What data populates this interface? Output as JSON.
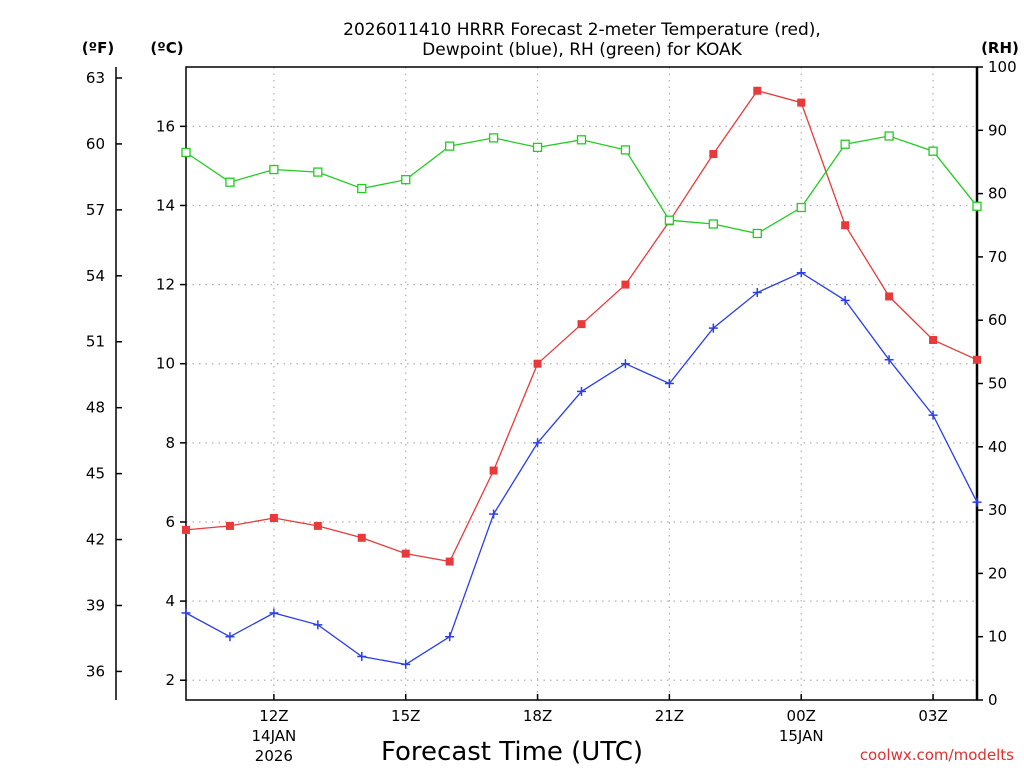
{
  "chart_data": {
    "type": "line",
    "title_line1": "2026011410 HRRR Forecast 2-meter Temperature (red),",
    "title_line2": "Dewpoint (blue), RH (green) for KOAK",
    "xlabel": "Forecast Time (UTC)",
    "credit": "coolwx.com/modelts",
    "units": {
      "fahrenheit": "(ºF)",
      "celsius": "(ºC)",
      "rh": "(RH)"
    },
    "x_hours": [
      10,
      11,
      12,
      13,
      14,
      15,
      16,
      17,
      18,
      19,
      20,
      21,
      22,
      23,
      24,
      25,
      26,
      27,
      28
    ],
    "xlim": [
      10,
      28
    ],
    "x_ticks": [
      {
        "hour": 12,
        "label": "12Z",
        "date": "14JAN",
        "year": "2026"
      },
      {
        "hour": 15,
        "label": "15Z"
      },
      {
        "hour": 18,
        "label": "18Z"
      },
      {
        "hour": 21,
        "label": "21Z"
      },
      {
        "hour": 24,
        "label": "00Z",
        "date": "15JAN"
      },
      {
        "hour": 27,
        "label": "03Z"
      }
    ],
    "celsius_axis": {
      "ylim": [
        1.5,
        17.5
      ],
      "ticks": [
        "2",
        "4",
        "6",
        "8",
        "10",
        "12",
        "14",
        "16"
      ]
    },
    "fahrenheit_axis": {
      "ylim": [
        34.7,
        63.5
      ],
      "ticks": [
        "36",
        "39",
        "42",
        "45",
        "48",
        "51",
        "54",
        "57",
        "60",
        "63"
      ]
    },
    "rh_axis": {
      "ylim": [
        0,
        100
      ],
      "ticks": [
        "0",
        "10",
        "20",
        "30",
        "40",
        "50",
        "60",
        "70",
        "80",
        "90",
        "100"
      ]
    },
    "series": [
      {
        "name": "Temperature",
        "color": "#e83a3a",
        "marker": "filled-square",
        "axis": "celsius",
        "values": [
          5.8,
          5.9,
          6.1,
          5.9,
          5.6,
          5.2,
          5.0,
          7.3,
          10.0,
          11.0,
          12.0,
          13.6,
          15.3,
          16.9,
          16.6,
          13.5,
          11.7,
          10.6,
          10.1
        ]
      },
      {
        "name": "Dewpoint",
        "color": "#2a3fe8",
        "marker": "plus",
        "axis": "celsius",
        "values": [
          3.7,
          3.1,
          3.7,
          3.4,
          2.6,
          2.4,
          3.1,
          6.2,
          8.0,
          9.3,
          10.0,
          9.5,
          10.9,
          11.8,
          12.3,
          11.6,
          10.1,
          8.7,
          6.5
        ]
      },
      {
        "name": "RH",
        "color": "#22cc22",
        "marker": "hollow-square",
        "axis": "rh",
        "values": [
          86.5,
          81.8,
          83.8,
          83.4,
          80.8,
          82.2,
          87.5,
          88.8,
          87.3,
          88.5,
          86.9,
          75.8,
          75.2,
          73.7,
          77.8,
          87.8,
          89.1,
          86.7,
          78.0
        ]
      }
    ]
  }
}
